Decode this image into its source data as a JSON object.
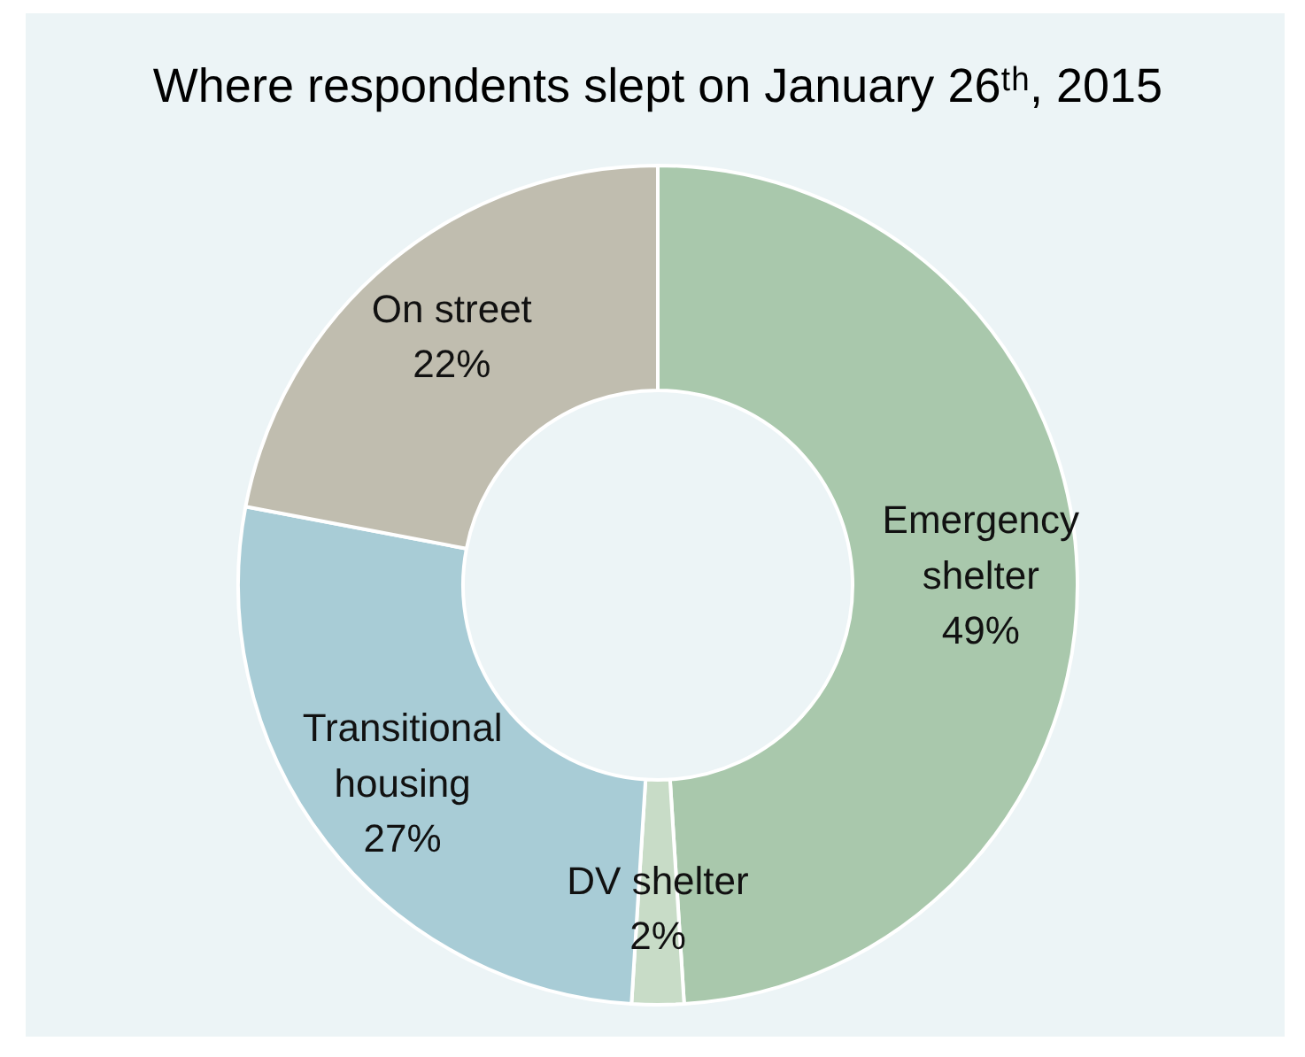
{
  "chart_data": {
    "type": "donut",
    "title": "Where respondents slept on January 26ᵗʰ, 2015",
    "categories": [
      "Emergency shelter",
      "DV shelter",
      "Transitional housing",
      "On street"
    ],
    "values": [
      49,
      2,
      27,
      22
    ],
    "colors": [
      "#a9c8ac",
      "#c8dcc7",
      "#a8ccd6",
      "#c0bdaf"
    ],
    "value_labels": [
      "49%",
      "2%",
      "27%",
      "22%"
    ]
  }
}
